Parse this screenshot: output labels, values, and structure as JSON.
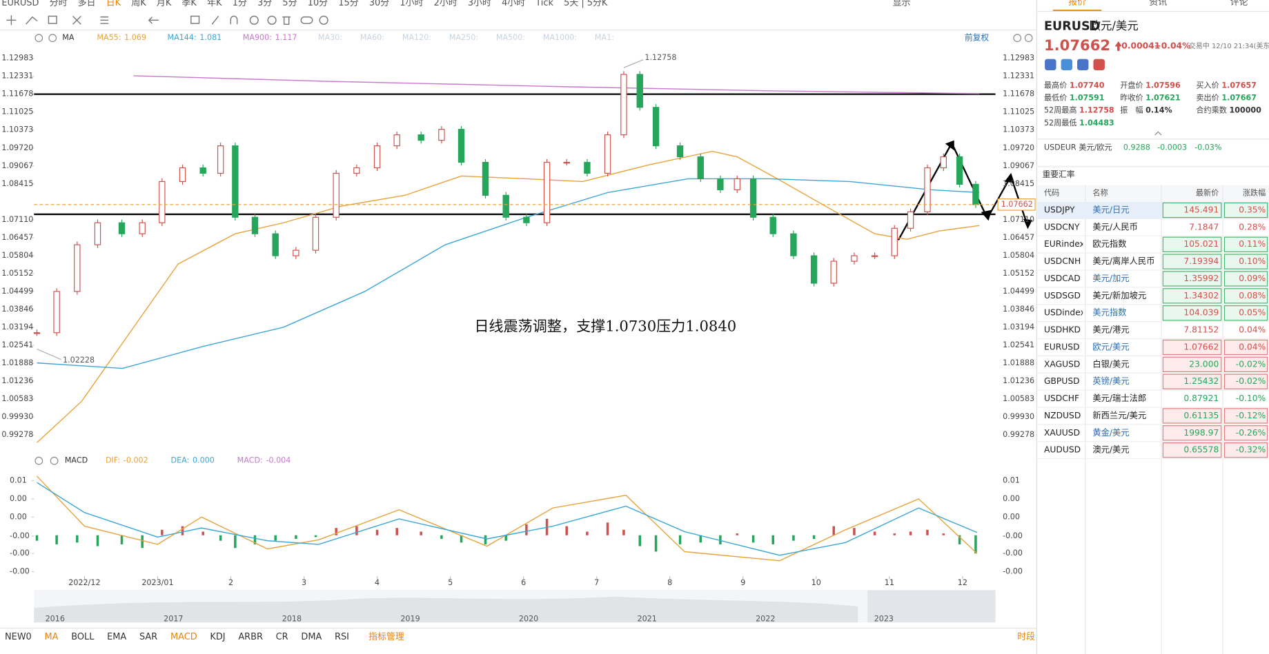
{
  "toolbar": {
    "items": [
      "EURUSD",
      "分时",
      "多日",
      "日K",
      "周K",
      "月K",
      "季K",
      "年K",
      "1分",
      "3分",
      "5分",
      "10分",
      "15分",
      "30分",
      "1小时",
      "2小时",
      "3小时",
      "4小时",
      "Tick",
      "5天 | 5分K"
    ],
    "active": "日K",
    "display": "显示"
  },
  "chart_data": [
    {
      "type": "candlestick",
      "indicator": "MA",
      "adjust": "前复权",
      "up_color": "#d0504c",
      "down_color": "#26a65b",
      "x": [
        0.35,
        0.62,
        0.9,
        1.18,
        1.51,
        1.79,
        2.06,
        2.34,
        2.62,
        2.86,
        3.06,
        3.33,
        3.61,
        3.89,
        4.16,
        4.44,
        4.72,
        5.0,
        5.27,
        5.6,
        5.88,
        6.15,
        6.48,
        6.76,
        7.04,
        7.32,
        7.59,
        7.87,
        8.15,
        8.37,
        8.59,
        8.81,
        9.14,
        9.42,
        9.69,
        9.92,
        10.14,
        10.41,
        10.69,
        10.97,
        11.24,
        11.52,
        11.8,
        12.07,
        12.29,
        12.52,
        12.74,
        12.96,
        13.18
      ],
      "close": [
        1.03,
        1.045,
        1.062,
        1.07,
        1.066,
        1.07,
        1.085,
        1.09,
        1.088,
        1.098,
        1.072,
        1.066,
        1.058,
        1.06,
        1.072,
        1.088,
        1.09,
        1.098,
        1.102,
        1.1,
        1.104,
        1.092,
        1.08,
        1.072,
        1.07,
        1.092,
        1.092,
        1.088,
        1.102,
        1.124,
        1.112,
        1.098,
        1.094,
        1.086,
        1.082,
        1.086,
        1.072,
        1.066,
        1.058,
        1.048,
        1.056,
        1.058,
        1.058,
        1.068,
        1.074,
        1.09,
        1.094,
        1.084,
        1.0766
      ],
      "xlim": [
        0.31,
        13.45
      ],
      "xticks": [
        {
          "value": 1,
          "label": "2022/12"
        },
        {
          "value": 2,
          "label": "2023/01"
        },
        {
          "value": 3,
          "label": "2"
        },
        {
          "value": 4,
          "label": "3"
        },
        {
          "value": 5,
          "label": "4"
        },
        {
          "value": 6,
          "label": "5"
        },
        {
          "value": 7,
          "label": "6"
        },
        {
          "value": 8,
          "label": "7"
        },
        {
          "value": 9,
          "label": "8"
        },
        {
          "value": 10,
          "label": "9"
        },
        {
          "value": 11,
          "label": "10"
        },
        {
          "value": 12,
          "label": "11"
        },
        {
          "value": 13,
          "label": "12"
        }
      ],
      "ylim": [
        0.9878,
        1.134
      ],
      "yticks": [
        1.12983,
        1.12331,
        1.11678,
        1.11025,
        1.10373,
        {
          "value": 1.0972,
          "label": "1.09720"
        },
        1.09067,
        1.08415,
        {
          "value": 1.0711,
          "label": "1.07110"
        },
        1.06457,
        1.05804,
        1.05152,
        1.04499,
        1.03846,
        1.03194,
        1.02541,
        1.01888,
        1.01236,
        1.00583,
        {
          "value": 0.9993,
          "label": "0.99930"
        },
        0.99278
      ],
      "ma": [
        {
          "name": "MA55:",
          "legend_value": "1.069",
          "color": "#e8a23a",
          "x": [
            0.35,
            0.96,
            1.62,
            2.28,
            3.06,
            3.72,
            4.5,
            5.38,
            6.15,
            7.04,
            7.81,
            8.7,
            9.58,
            9.92,
            10.47,
            11.13,
            11.8,
            12.24,
            12.68,
            13.23
          ],
          "values": [
            0.99,
            1.005,
            1.03,
            1.055,
            1.066,
            1.07,
            1.076,
            1.08,
            1.087,
            1.086,
            1.085,
            1.091,
            1.096,
            1.094,
            1.086,
            1.076,
            1.066,
            1.064,
            1.067,
            1.069
          ]
        },
        {
          "name": "MA144:",
          "legend_value": "1.081",
          "color": "#3aa6d8",
          "x": [
            0.35,
            1.52,
            2.62,
            3.72,
            4.83,
            5.93,
            7.04,
            8.15,
            9.25,
            10.36,
            11.46,
            12.57,
            13.23
          ],
          "values": [
            1.019,
            1.017,
            1.025,
            1.032,
            1.045,
            1.062,
            1.072,
            1.081,
            1.086,
            1.086,
            1.085,
            1.082,
            1.081
          ]
        },
        {
          "name": "MA900:",
          "legend_value": "1.117",
          "color": "#c878d0",
          "x": [
            1.67,
            4.27,
            7.59,
            10.36,
            13.23
          ],
          "values": [
            1.1235,
            1.1215,
            1.1195,
            1.118,
            1.117
          ]
        }
      ],
      "inactive_ma": [
        "MA30:",
        "MA60:",
        "MA120:",
        "MA250:",
        "MA500:",
        "MA1000:",
        "MA1:"
      ],
      "support_lines": [
        1.1168,
        1.0731
      ],
      "high": 1.12758,
      "high_x": 8.37,
      "low": 1.02228,
      "low_x": 0.35,
      "annotation": "日线震荡调整，支撑1.0730压力1.0840"
    },
    {
      "type": "macd",
      "indicator": "MACD",
      "xlim": [
        0.31,
        13.45
      ],
      "ylim": [
        -0.0047,
        0.0073
      ],
      "yticks": [
        {
          "value": 0.006,
          "label": "0.01"
        },
        {
          "value": 0.004,
          "label": "0.00"
        },
        {
          "value": 0.002,
          "label": "0.00"
        },
        {
          "value": -0.0001,
          "label": "-0.00"
        },
        {
          "value": -0.002,
          "label": "-0.00"
        },
        {
          "value": -0.004,
          "label": "-0.00"
        }
      ],
      "histogram": {
        "name": "MACD:",
        "legend_value": "-0.004",
        "color": "#c878d0",
        "x": [
          0.35,
          0.62,
          0.9,
          1.18,
          1.51,
          1.79,
          2.06,
          2.34,
          2.62,
          2.86,
          3.06,
          3.33,
          3.61,
          3.89,
          4.16,
          4.44,
          4.72,
          5.0,
          5.27,
          5.6,
          5.88,
          6.15,
          6.48,
          6.76,
          7.04,
          7.32,
          7.59,
          7.87,
          8.15,
          8.37,
          8.59,
          8.81,
          9.14,
          9.42,
          9.69,
          9.92,
          10.14,
          10.41,
          10.69,
          10.97,
          11.24,
          11.52,
          11.8,
          12.07,
          12.29,
          12.52,
          12.74,
          12.96,
          13.18
        ],
        "values": [
          -0.0006,
          -0.001,
          -0.0008,
          -0.0012,
          -0.001,
          -0.0014,
          0.0006,
          0.001,
          0.0004,
          -0.0006,
          -0.0014,
          -0.001,
          -0.0006,
          -0.0004,
          -0.0002,
          0.0008,
          0.001,
          0.0006,
          0.0008,
          0.0004,
          -0.0004,
          -0.0008,
          -0.001,
          -0.0006,
          0.0012,
          0.0018,
          0.001,
          0.0004,
          0.0014,
          0.0006,
          -0.0012,
          -0.0018,
          -0.001,
          -0.0008,
          -0.001,
          0.0002,
          -0.0008,
          -0.001,
          -0.0006,
          -0.0004,
          0.001,
          0.0008,
          0.0004,
          0.0002,
          0.0004,
          0.0006,
          0.0002,
          -0.001,
          -0.002
        ]
      },
      "series": [
        {
          "name": "DIF:",
          "legend_value": "-0.002",
          "color": "#e8a23a",
          "x": [
            0.35,
            1.0,
            2.0,
            2.6,
            3.5,
            4.2,
            5.3,
            6.5,
            7.4,
            8.4,
            9.2,
            10.5,
            11.4,
            12.4,
            13.2
          ],
          "values": [
            0.0065,
            0.001,
            -0.001,
            0.002,
            -0.0015,
            -0.0005,
            0.0028,
            -0.0012,
            0.003,
            0.0044,
            -0.0018,
            -0.0028,
            0.0006,
            0.004,
            -0.002
          ]
        },
        {
          "name": "DEA:",
          "legend_value": "0.000",
          "color": "#3aa6d8",
          "x": [
            0.35,
            1.0,
            2.0,
            2.6,
            3.5,
            4.2,
            5.3,
            6.5,
            7.4,
            8.4,
            9.2,
            10.5,
            11.4,
            12.4,
            13.2
          ],
          "values": [
            0.0058,
            0.0025,
            -0.0002,
            0.0008,
            -0.0006,
            -0.001,
            0.0018,
            -0.0004,
            0.001,
            0.0032,
            0.0004,
            -0.0022,
            -0.0008,
            0.003,
            0.0003
          ]
        }
      ]
    }
  ],
  "navigator": {
    "years": [
      "2016",
      "2017",
      "2018",
      "2019",
      "2020",
      "2021",
      "2022",
      "2023"
    ]
  },
  "bottom_tabs": {
    "items": [
      "NEW0",
      "MA",
      "BOLL",
      "EMA",
      "SAR",
      "MACD",
      "KDJ",
      "ARBR",
      "CR",
      "DMA",
      "RSI"
    ],
    "active": [
      "MA",
      "MACD"
    ],
    "manage": "指标管理",
    "period": "时段"
  },
  "side_tabs": {
    "items": [
      "报价",
      "资讯",
      "评论"
    ],
    "active": "报价"
  },
  "quote": {
    "code": "EURUSD",
    "name": "欧元/美元",
    "last": "1.07662",
    "change": "+0.00041",
    "change_pct": "+0.04%",
    "status": "交易中 12/10 21:34(美东",
    "stats": [
      [
        {
          "label": "最高价",
          "value": "1.07740"
        },
        {
          "label": "开盘价",
          "value": "1.07596"
        },
        {
          "label": "买入价",
          "value": "1.07657"
        }
      ],
      [
        {
          "label": "最低价",
          "value": "1.07591"
        },
        {
          "label": "昨收价",
          "value": "1.07621"
        },
        {
          "label": "卖出价",
          "value": "1.07667"
        }
      ],
      [
        {
          "label": "52周最高",
          "value": "1.12758"
        },
        {
          "label": "振　幅",
          "value": "0.14%"
        },
        {
          "label": "合约乘数",
          "value": "100000"
        }
      ],
      [
        {
          "label": "52周最低",
          "value": "1.04483"
        }
      ]
    ],
    "inverse": {
      "code": "USDEUR",
      "name": "美元/欧元",
      "last": "0.9288",
      "change": "-0.0003",
      "change_pct": "-0.03%"
    }
  },
  "rates": {
    "title": "重要汇率",
    "columns": [
      "代码",
      "名称",
      "最新价",
      "涨跌幅"
    ],
    "rows": [
      {
        "code": "USDJPY",
        "name": "美元/日元",
        "price": "145.491",
        "change": "0.35%",
        "flash": "green",
        "link": true
      },
      {
        "code": "USDCNY",
        "name": "美元/人民币",
        "price": "7.1847",
        "change": "0.28%"
      },
      {
        "code": "EURindex",
        "name": "欧元指数",
        "price": "105.021",
        "change": "0.11%",
        "flash": "green"
      },
      {
        "code": "USDCNH",
        "name": "美元/离岸人民币",
        "price": "7.19394",
        "change": "0.10%",
        "flash": "green"
      },
      {
        "code": "USDCAD",
        "name": "美元/加元",
        "price": "1.35992",
        "change": "0.09%",
        "flash": "green",
        "link": true
      },
      {
        "code": "USDSGD",
        "name": "美元/新加坡元",
        "price": "1.34302",
        "change": "0.08%",
        "flash": "green"
      },
      {
        "code": "USDindex",
        "name": "美元指数",
        "price": "104.039",
        "change": "0.05%",
        "flash": "green",
        "link": true
      },
      {
        "code": "USDHKD",
        "name": "美元/港元",
        "price": "7.81152",
        "change": "0.04%"
      },
      {
        "code": "EURUSD",
        "name": "欧元/美元",
        "price": "1.07662",
        "change": "0.04%",
        "flash": "red",
        "link": true
      },
      {
        "code": "XAGUSD",
        "name": "白银/美元",
        "price": "23.000",
        "change": "-0.02%",
        "flash": "red"
      },
      {
        "code": "GBPUSD",
        "name": "英镑/美元",
        "price": "1.25432",
        "change": "-0.02%",
        "flash": "red",
        "link": true
      },
      {
        "code": "USDCHF",
        "name": "美元/瑞士法郎",
        "price": "0.87921",
        "change": "-0.10%"
      },
      {
        "code": "NZDUSD",
        "name": "新西兰元/美元",
        "price": "0.61135",
        "change": "-0.12%",
        "flash": "red"
      },
      {
        "code": "XAUUSD",
        "name": "黄金/美元",
        "price": "1998.97",
        "change": "-0.26%",
        "flash": "red",
        "link": true
      },
      {
        "code": "AUDUSD",
        "name": "澳元/美元",
        "price": "0.65578",
        "change": "-0.32%",
        "flash": "red"
      }
    ]
  }
}
